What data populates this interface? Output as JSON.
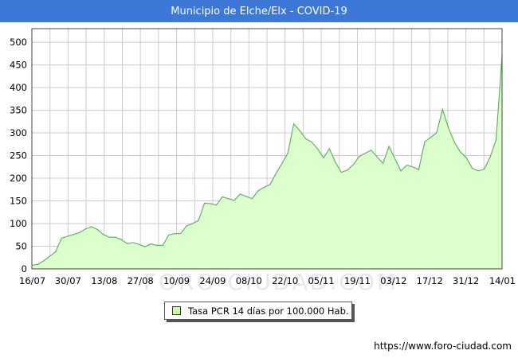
{
  "header": {
    "title": "Municipio de Elche/Elx - COVID-19"
  },
  "watermark": "FORO-CIUDAD.COM",
  "footer": {
    "url": "https://www.foro-ciudad.com"
  },
  "colors": {
    "header_bg": "#3c78d8",
    "line": "#5cb85c",
    "fill": "#ddffcc",
    "grid": "#cccccc"
  },
  "chart_data": {
    "type": "area",
    "title": "Municipio de Elche/Elx - COVID-19",
    "xlabel": "",
    "ylabel": "",
    "ylim": [
      0,
      530
    ],
    "yticks": [
      0,
      50,
      100,
      150,
      200,
      250,
      300,
      350,
      400,
      450,
      500
    ],
    "x_tick_labels": [
      "16/07",
      "30/07",
      "13/08",
      "27/08",
      "10/09",
      "24/09",
      "08/10",
      "22/10",
      "05/11",
      "19/11",
      "03/12",
      "17/12",
      "31/12",
      "14/01"
    ],
    "grid": true,
    "legend_position": "bottom-center",
    "series": [
      {
        "name": "Tasa PCR 14 días por 100.000 Hab.",
        "values": [
          8,
          10,
          18,
          28,
          38,
          68,
          72,
          76,
          80,
          88,
          93,
          87,
          76,
          70,
          70,
          65,
          56,
          58,
          54,
          49,
          55,
          52,
          52,
          75,
          78,
          78,
          95,
          100,
          107,
          145,
          144,
          141,
          159,
          155,
          151,
          165,
          160,
          155,
          172,
          180,
          186,
          210,
          232,
          255,
          320,
          305,
          287,
          280,
          265,
          245,
          265,
          235,
          213,
          218,
          230,
          248,
          255,
          262,
          247,
          233,
          270,
          243,
          216,
          229,
          225,
          219,
          280,
          290,
          300,
          352,
          311,
          279,
          258,
          245,
          222,
          216,
          220,
          247,
          285,
          470
        ]
      }
    ]
  },
  "legend": {
    "label": "Tasa PCR 14 días por 100.000 Hab."
  }
}
